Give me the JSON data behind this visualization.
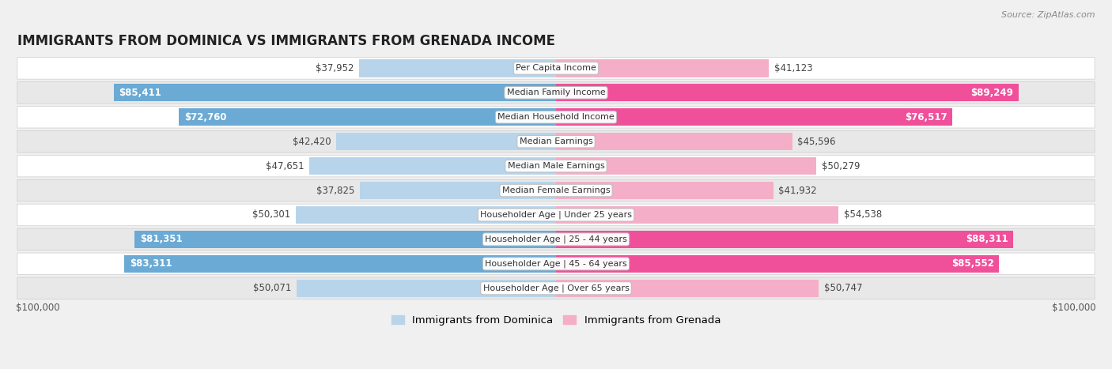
{
  "title": "IMMIGRANTS FROM DOMINICA VS IMMIGRANTS FROM GRENADA INCOME",
  "source": "Source: ZipAtlas.com",
  "categories": [
    "Per Capita Income",
    "Median Family Income",
    "Median Household Income",
    "Median Earnings",
    "Median Male Earnings",
    "Median Female Earnings",
    "Householder Age | Under 25 years",
    "Householder Age | 25 - 44 years",
    "Householder Age | 45 - 64 years",
    "Householder Age | Over 65 years"
  ],
  "dominica_values": [
    37952,
    85411,
    72760,
    42420,
    47651,
    37825,
    50301,
    81351,
    83311,
    50071
  ],
  "grenada_values": [
    41123,
    89249,
    76517,
    45596,
    50279,
    41932,
    54538,
    88311,
    85552,
    50747
  ],
  "dominica_labels": [
    "$37,952",
    "$85,411",
    "$72,760",
    "$42,420",
    "$47,651",
    "$37,825",
    "$50,301",
    "$81,351",
    "$83,311",
    "$50,071"
  ],
  "grenada_labels": [
    "$41,123",
    "$89,249",
    "$76,517",
    "$45,596",
    "$50,279",
    "$41,932",
    "$54,538",
    "$88,311",
    "$85,552",
    "$50,747"
  ],
  "dominica_color_light": "#b8d4ea",
  "dominica_color_dark": "#6aaad4",
  "grenada_color_light": "#f5aec8",
  "grenada_color_dark": "#f0509a",
  "dominica_text_inside_threshold": 65000,
  "grenada_text_inside_threshold": 65000,
  "max_value": 100000,
  "bar_height": 0.72,
  "background_color": "#f0f0f0",
  "row_bg_light": "#ffffff",
  "row_bg_dark": "#e8e8e8",
  "label_fontsize": 8.5,
  "title_fontsize": 12,
  "legend_fontsize": 9.5,
  "source_fontsize": 8
}
